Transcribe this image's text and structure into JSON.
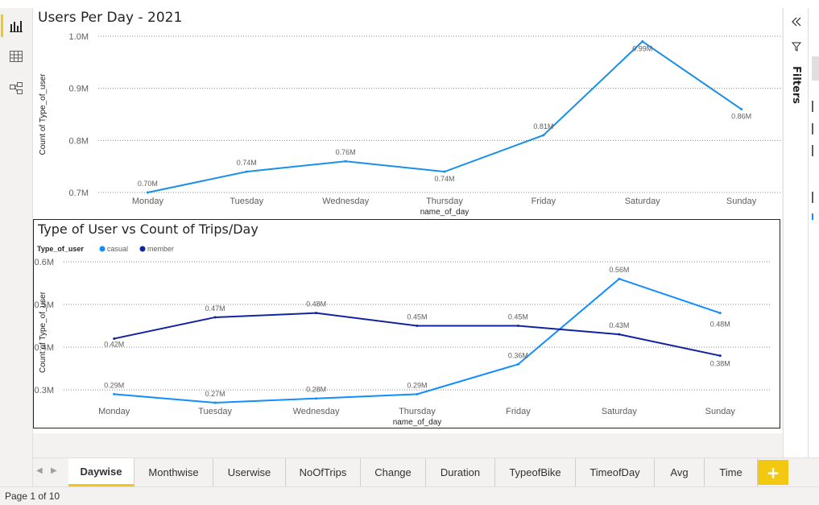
{
  "filters_pane": {
    "label": "Filters"
  },
  "tabs": [
    {
      "label": "Daywise",
      "active": true
    },
    {
      "label": "Monthwise"
    },
    {
      "label": "Userwise"
    },
    {
      "label": "NoOfTrips"
    },
    {
      "label": "Change"
    },
    {
      "label": "Duration"
    },
    {
      "label": "TypeofBike"
    },
    {
      "label": "TimeofDay"
    },
    {
      "label": "Avg"
    },
    {
      "label": "Time"
    }
  ],
  "add_tab_label": "+",
  "status": {
    "page": "Page 1 of 10"
  },
  "colors": {
    "accent": "#f2c811",
    "casual": "#118dff",
    "member": "#12239e",
    "line": "#1a8fe6"
  },
  "chart_data": [
    {
      "type": "line",
      "title": "Users Per Day - 2021",
      "xlabel": "name_of_day",
      "ylabel": "Count of Type_of_user",
      "categories": [
        "Monday",
        "Tuesday",
        "Wednesday",
        "Thursday",
        "Friday",
        "Saturday",
        "Sunday"
      ],
      "y_ticks": [
        "1.0M",
        "0.9M",
        "0.8M",
        "0.7M"
      ],
      "ylim": [
        0.7,
        1.0
      ],
      "values": [
        0.7,
        0.74,
        0.76,
        0.74,
        0.81,
        0.99,
        0.86
      ],
      "data_labels": [
        "0.70M",
        "0.74M",
        "0.76M",
        "0.74M",
        "0.81M",
        "0.99M",
        "0.86M"
      ],
      "grid": true
    },
    {
      "type": "line",
      "title": "Type of User vs Count of Trips/Day",
      "xlabel": "name_of_day",
      "ylabel": "Count of Type_of_user",
      "legend_title": "Type_of_user",
      "legend_position": "top-left",
      "categories": [
        "Monday",
        "Tuesday",
        "Wednesday",
        "Thursday",
        "Friday",
        "Saturday",
        "Sunday"
      ],
      "y_ticks": [
        "0.6M",
        "0.5M",
        "0.4M",
        "0.3M"
      ],
      "ylim": [
        0.27,
        0.6
      ],
      "grid": true,
      "series": [
        {
          "name": "casual",
          "color": "#118dff",
          "values": [
            0.29,
            0.27,
            0.28,
            0.29,
            0.36,
            0.56,
            0.48
          ],
          "data_labels": [
            "0.29M",
            "0.27M",
            "0.28M",
            "0.29M",
            "0.36M",
            "0.56M",
            "0.48M"
          ]
        },
        {
          "name": "member",
          "color": "#12239e",
          "values": [
            0.42,
            0.47,
            0.48,
            0.45,
            0.45,
            0.43,
            0.38
          ],
          "data_labels": [
            "0.42M",
            "0.47M",
            "0.48M",
            "0.45M",
            "0.45M",
            "0.43M",
            "0.38M"
          ]
        }
      ]
    }
  ]
}
